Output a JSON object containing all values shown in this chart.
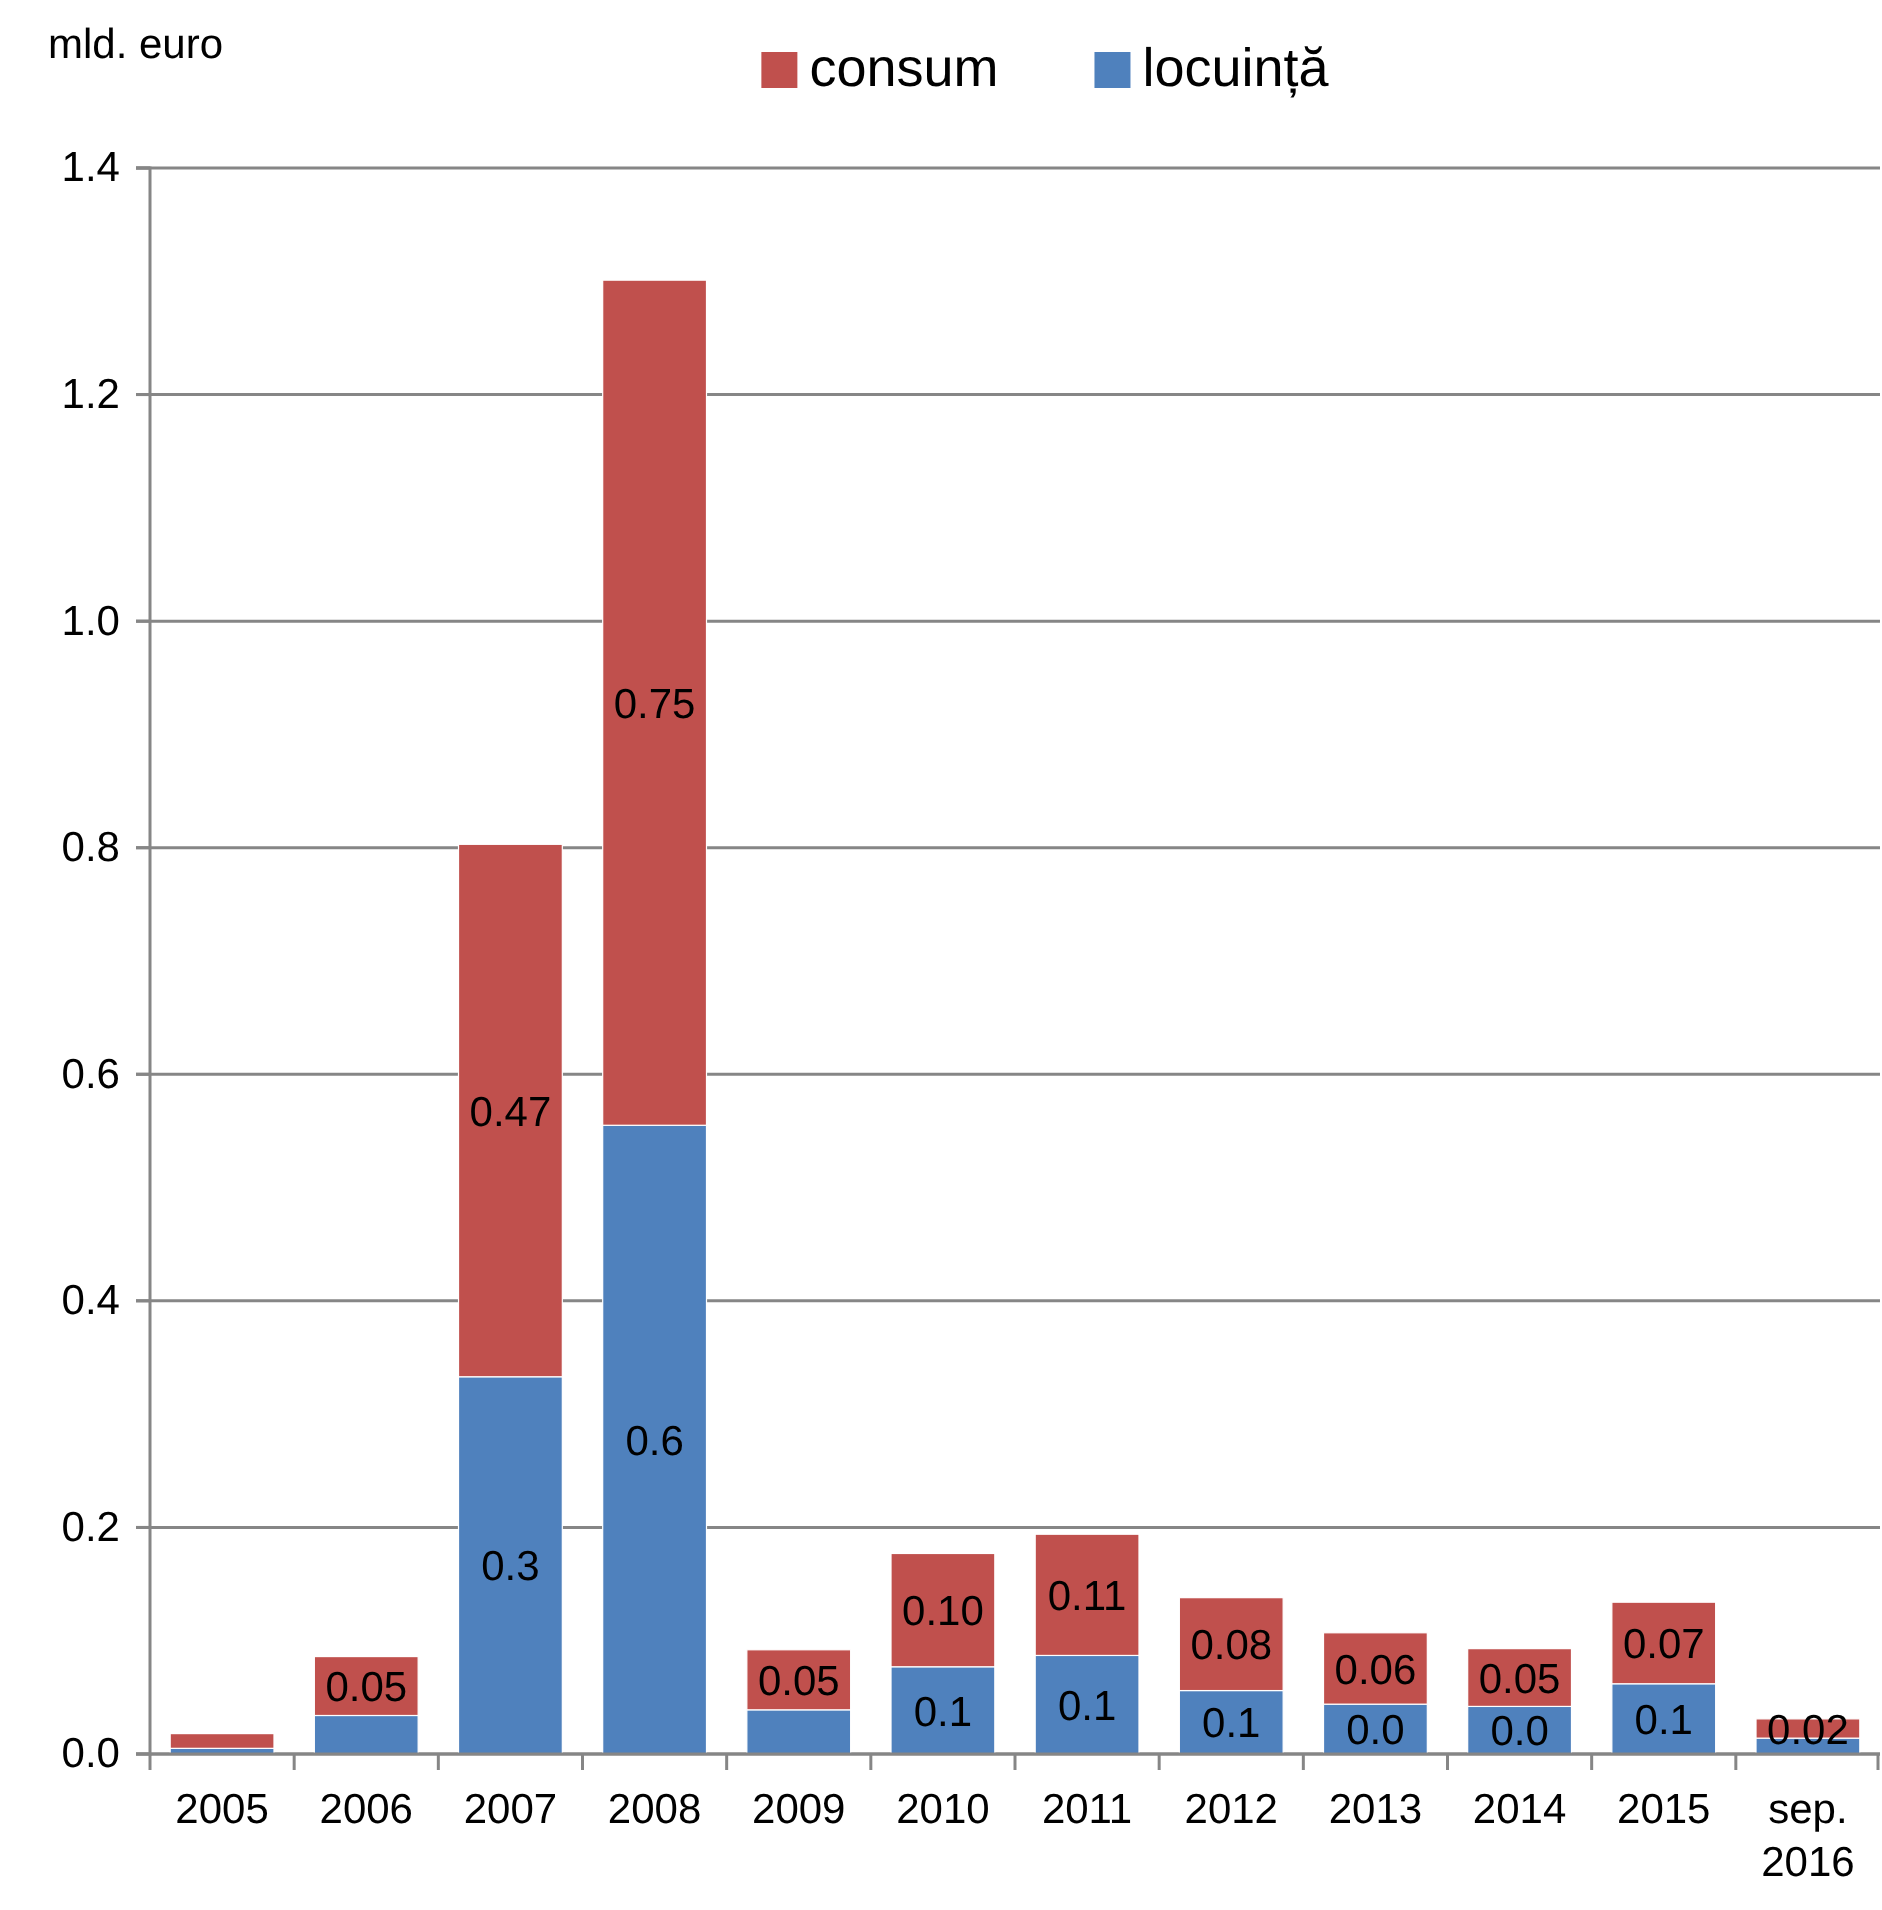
{
  "chart_data": {
    "type": "bar",
    "stacked": true,
    "ylabel": "mld. euro",
    "categories": [
      "2005",
      "2006",
      "2007",
      "2008",
      "2009",
      "2010",
      "2011",
      "2012",
      "2013",
      "2014",
      "2015",
      "sep. 2016"
    ],
    "series": [
      {
        "name": "locuință",
        "color": "#4f81bd",
        "values": [
          0.005,
          0.034,
          0.333,
          0.555,
          0.039,
          0.077,
          0.087,
          0.056,
          0.044,
          0.042,
          0.062,
          0.014
        ],
        "value_labels": [
          null,
          null,
          "0.3",
          "0.6",
          null,
          "0.1",
          "0.1",
          "0.1",
          "0.0",
          "0.0",
          "0.1",
          null
        ]
      },
      {
        "name": "consum",
        "color": "#c0504d",
        "values": [
          0.013,
          0.052,
          0.47,
          0.746,
          0.053,
          0.1,
          0.107,
          0.082,
          0.063,
          0.051,
          0.072,
          0.017
        ],
        "value_labels": [
          null,
          "0.05",
          "0.47",
          "0.75",
          "0.05",
          "0.10",
          "0.11",
          "0.08",
          "0.06",
          "0.05",
          "0.07",
          "0.02"
        ]
      }
    ],
    "ylim": [
      0,
      1.4
    ],
    "yticks": [
      {
        "value": 0,
        "label": "0.0"
      },
      0.2,
      0.4,
      0.6,
      0.8,
      {
        "value": 1,
        "label": "1.0"
      },
      1.2,
      1.4
    ],
    "grid": "y",
    "legend": "top"
  }
}
